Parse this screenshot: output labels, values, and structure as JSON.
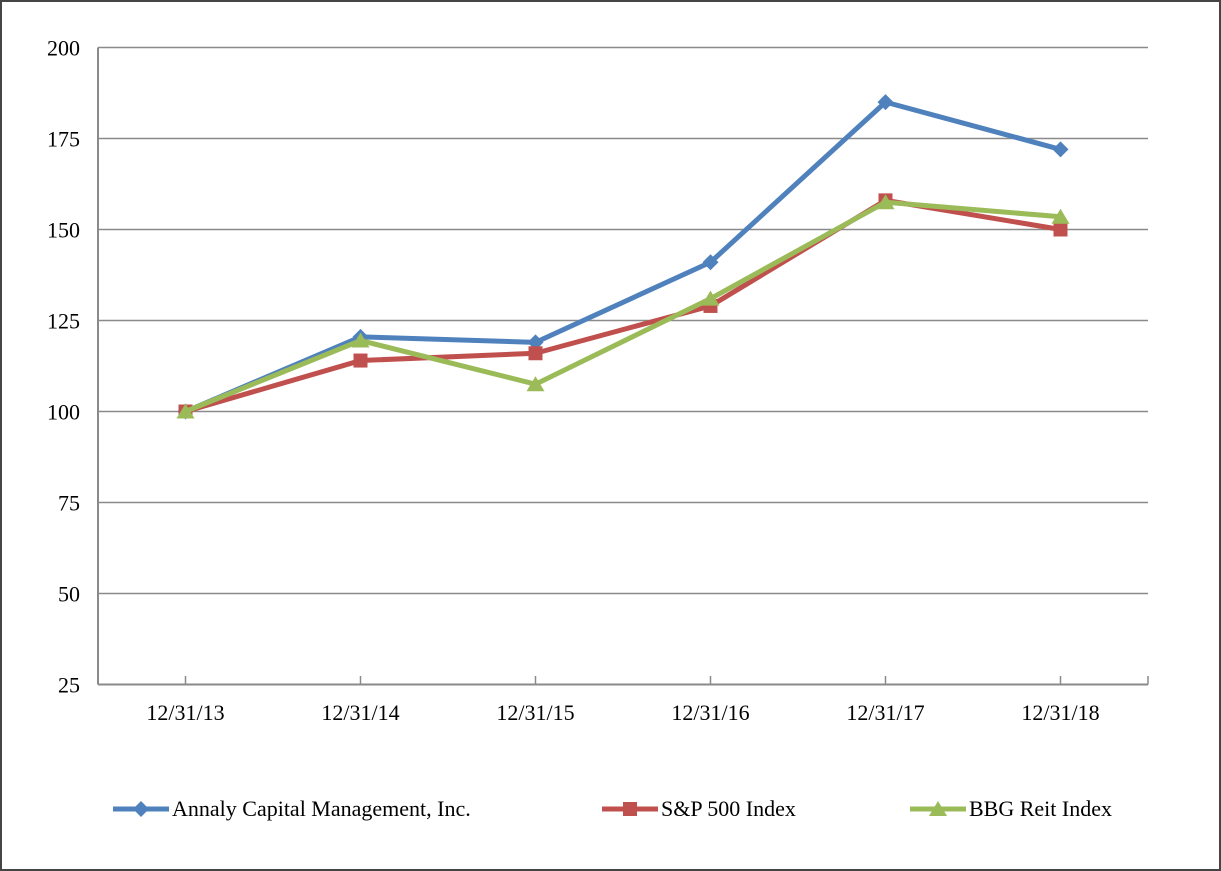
{
  "chart_data": {
    "type": "line",
    "title": "",
    "xlabel": "",
    "ylabel": "",
    "categories": [
      "12/31/13",
      "12/31/14",
      "12/31/15",
      "12/31/16",
      "12/31/17",
      "12/31/18"
    ],
    "series": [
      {
        "name": "Annaly Capital Management, Inc.",
        "marker": "diamond",
        "color": "#4F81BD",
        "values": [
          100,
          120.5,
          119,
          141,
          185,
          172
        ]
      },
      {
        "name": "S&P 500 Index",
        "marker": "square",
        "color": "#C0504D",
        "values": [
          100,
          114,
          116,
          129,
          158,
          150
        ]
      },
      {
        "name": "BBG Reit Index",
        "marker": "triangle",
        "color": "#9BBB59",
        "values": [
          100,
          119.5,
          107.5,
          131,
          157.5,
          153.5
        ]
      }
    ],
    "y_ticks": [
      200,
      175,
      150,
      125,
      100,
      75,
      50,
      25
    ],
    "ylim": [
      25,
      200
    ],
    "grid": true,
    "grid_color": "#8A8A8A",
    "axis_text_color": "#000000",
    "legend_position": "bottom"
  }
}
